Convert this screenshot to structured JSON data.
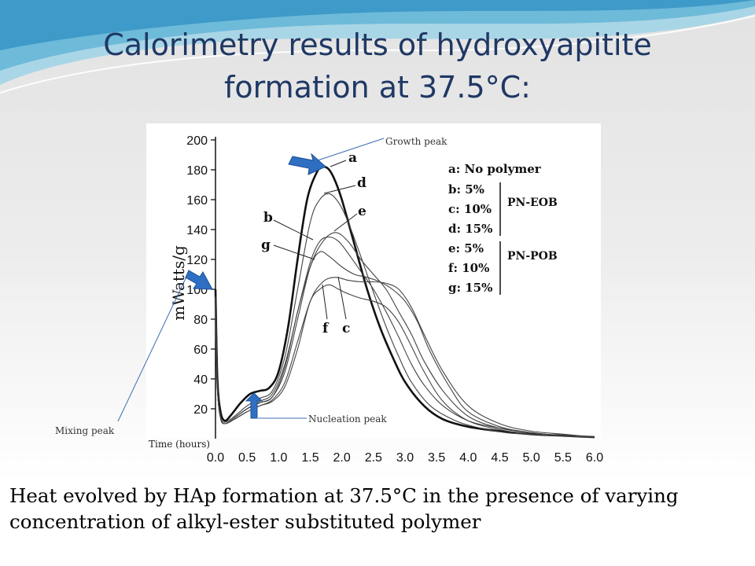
{
  "slide": {
    "title_line1": "Calorimetry results of hydroxyapitite",
    "title_line2": "formation at 37.5°C:",
    "caption_line1": "Heat evolved by HAp formation at 37.5°C in the presence of varying",
    "caption_line2": "concentration of  alkyl-ester substituted polymer",
    "colors": {
      "title": "#1f3864",
      "arrow": "#2e6fc4",
      "callout_line": "#3b6cb4"
    }
  },
  "chart_data": {
    "type": "line",
    "xlabel": "Time (hours)",
    "ylabel": "mWatts/g",
    "xlim": [
      0,
      6
    ],
    "ylim": [
      0,
      200
    ],
    "x_ticks": [
      "0.0",
      "0.5",
      "1.0",
      "1.5",
      "2.0",
      "2.5",
      "3.0",
      "3.5",
      "4.0",
      "4.5",
      "5.0",
      "5.5",
      "6.0"
    ],
    "y_ticks": [
      "20",
      "40",
      "60",
      "80",
      "100",
      "120",
      "140",
      "160",
      "180",
      "200"
    ],
    "legend": {
      "entries": [
        {
          "key": "a",
          "text": "a: No polymer"
        },
        {
          "key": "b",
          "text": "b: 5%"
        },
        {
          "key": "c",
          "text": "c: 10%"
        },
        {
          "key": "d",
          "text": "d: 15%"
        },
        {
          "key": "e",
          "text": "e: 5%"
        },
        {
          "key": "f",
          "text": "f: 10%"
        },
        {
          "key": "g",
          "text": "g: 15%"
        }
      ],
      "groups": [
        {
          "label": "PN-EOB",
          "members": [
            "b",
            "c",
            "d"
          ]
        },
        {
          "label": "PN-POB",
          "members": [
            "e",
            "f",
            "g"
          ]
        }
      ],
      "placement": "top-right"
    },
    "annotations": {
      "growth": "Growth peak",
      "nucleation": "Nucleation peak",
      "mixing": "Mixing peak"
    },
    "series": [
      {
        "name": "a",
        "x": [
          0.0,
          0.03,
          0.08,
          0.15,
          0.25,
          0.4,
          0.55,
          0.7,
          0.85,
          1.0,
          1.15,
          1.3,
          1.45,
          1.6,
          1.7,
          1.8,
          1.9,
          2.0,
          2.2,
          2.4,
          2.6,
          2.8,
          3.0,
          3.3,
          3.6,
          4.0,
          4.5,
          5.0,
          5.5,
          6.0
        ],
        "y": [
          100,
          40,
          18,
          12,
          16,
          24,
          30,
          32,
          34,
          45,
          75,
          120,
          160,
          178,
          182,
          180,
          172,
          160,
          130,
          100,
          75,
          55,
          38,
          22,
          13,
          8,
          5,
          3,
          2,
          1
        ]
      },
      {
        "name": "b",
        "x": [
          0.0,
          0.03,
          0.08,
          0.15,
          0.3,
          0.5,
          0.7,
          0.9,
          1.1,
          1.3,
          1.5,
          1.65,
          1.8,
          1.95,
          2.1,
          2.3,
          2.5,
          2.7,
          2.9,
          3.1,
          3.3,
          3.6,
          4.0,
          4.5,
          5.0,
          5.5,
          6.0
        ],
        "y": [
          95,
          35,
          14,
          10,
          14,
          20,
          25,
          30,
          50,
          85,
          118,
          132,
          135,
          132,
          124,
          112,
          100,
          85,
          68,
          50,
          36,
          22,
          12,
          7,
          4,
          2,
          1
        ]
      },
      {
        "name": "c",
        "x": [
          0.0,
          0.03,
          0.08,
          0.15,
          0.3,
          0.5,
          0.7,
          0.9,
          1.1,
          1.3,
          1.5,
          1.7,
          1.9,
          2.1,
          2.3,
          2.5,
          2.7,
          2.9,
          3.1,
          3.3,
          3.6,
          4.0,
          4.5,
          5.0,
          5.5,
          6.0
        ],
        "y": [
          95,
          35,
          14,
          10,
          13,
          18,
          22,
          25,
          35,
          60,
          92,
          105,
          108,
          106,
          105,
          105,
          104,
          100,
          88,
          70,
          45,
          22,
          10,
          5,
          3,
          1
        ]
      },
      {
        "name": "d",
        "x": [
          0.0,
          0.03,
          0.08,
          0.15,
          0.3,
          0.5,
          0.7,
          0.9,
          1.1,
          1.3,
          1.5,
          1.65,
          1.8,
          1.95,
          2.1,
          2.3,
          2.5,
          2.7,
          2.9,
          3.1,
          3.4,
          3.8,
          4.2,
          4.6,
          5.0,
          5.5,
          6.0
        ],
        "y": [
          95,
          35,
          15,
          11,
          15,
          22,
          27,
          32,
          55,
          100,
          145,
          160,
          164,
          158,
          145,
          122,
          98,
          75,
          55,
          38,
          22,
          12,
          7,
          4,
          3,
          2,
          1
        ]
      },
      {
        "name": "e",
        "x": [
          0.0,
          0.03,
          0.08,
          0.15,
          0.3,
          0.5,
          0.7,
          0.9,
          1.1,
          1.3,
          1.5,
          1.7,
          1.9,
          2.1,
          2.3,
          2.5,
          2.7,
          2.9,
          3.1,
          3.3,
          3.6,
          4.0,
          4.5,
          5.0,
          5.5,
          6.0
        ],
        "y": [
          95,
          35,
          14,
          10,
          14,
          20,
          24,
          28,
          45,
          80,
          115,
          132,
          138,
          132,
          120,
          110,
          100,
          85,
          70,
          52,
          32,
          15,
          7,
          4,
          2,
          1
        ]
      },
      {
        "name": "f",
        "x": [
          0.0,
          0.03,
          0.08,
          0.15,
          0.3,
          0.5,
          0.7,
          0.9,
          1.1,
          1.3,
          1.5,
          1.65,
          1.8,
          1.95,
          2.1,
          2.3,
          2.5,
          2.7,
          2.9,
          3.1,
          3.3,
          3.6,
          4.0,
          4.5,
          5.0,
          5.5,
          6.0
        ],
        "y": [
          95,
          35,
          14,
          10,
          13,
          18,
          22,
          26,
          38,
          65,
          92,
          100,
          103,
          100,
          97,
          94,
          92,
          88,
          78,
          62,
          45,
          25,
          12,
          6,
          3,
          2,
          1
        ]
      },
      {
        "name": "g",
        "x": [
          0.0,
          0.03,
          0.08,
          0.15,
          0.3,
          0.5,
          0.7,
          0.9,
          1.1,
          1.3,
          1.5,
          1.65,
          1.8,
          2.0,
          2.2,
          2.4,
          2.6,
          2.8,
          3.0,
          3.2,
          3.4,
          3.7,
          4.0,
          4.5,
          5.0,
          5.5,
          6.0
        ],
        "y": [
          95,
          35,
          14,
          10,
          14,
          20,
          24,
          28,
          48,
          85,
          115,
          125,
          122,
          115,
          110,
          108,
          105,
          100,
          92,
          78,
          58,
          35,
          18,
          8,
          4,
          2,
          1
        ]
      }
    ]
  }
}
